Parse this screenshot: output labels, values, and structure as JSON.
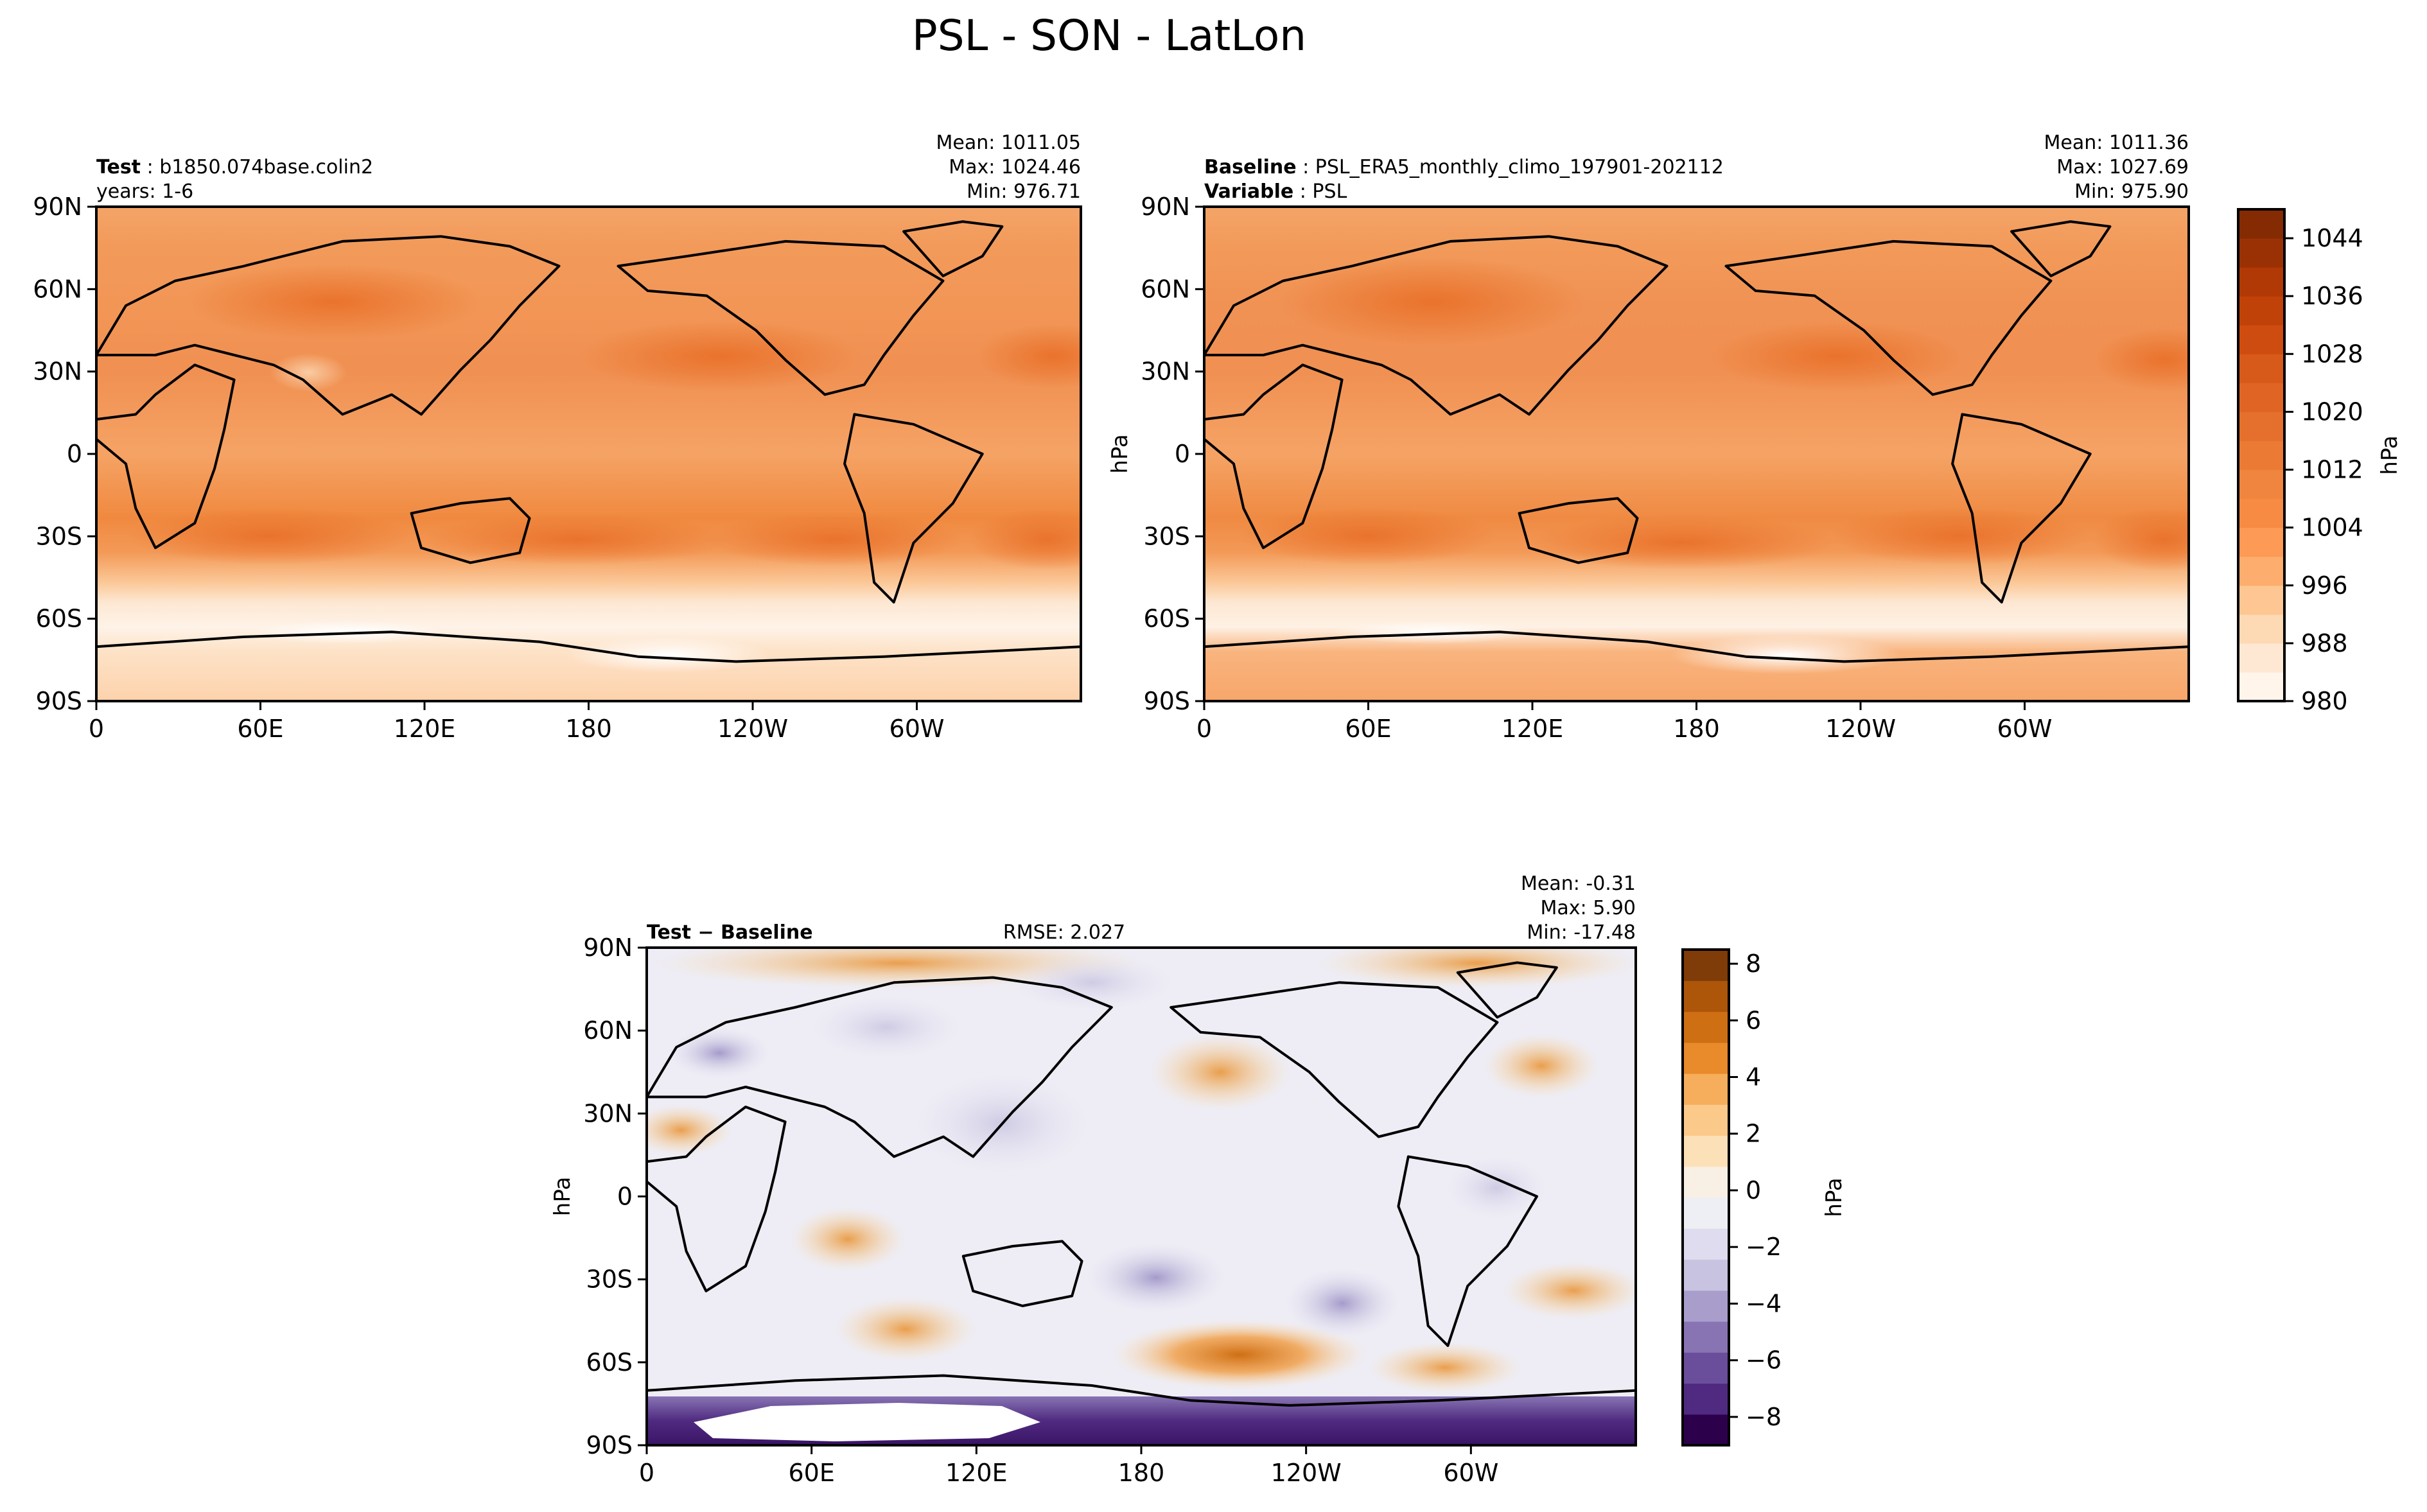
{
  "figure": {
    "title": "PSL - SON - LatLon"
  },
  "chart_data": [
    {
      "type": "heatmap",
      "name": "test",
      "header_left": [
        {
          "key": "Test",
          "value": "b1850.074base.colin2"
        },
        {
          "key": "",
          "value": "years: 1-6"
        }
      ],
      "header_right": [
        "Mean: 1011.05",
        "Max: 1024.46",
        "Min: 976.71"
      ],
      "xticks": [
        "0",
        "60E",
        "120E",
        "180",
        "120W",
        "60W"
      ],
      "yticks": [
        "90N",
        "60N",
        "30N",
        "0",
        "30S",
        "60S",
        "90S"
      ],
      "stats": {
        "mean": 1011.05,
        "max": 1024.46,
        "min": 976.71
      },
      "colormap": "Oranges",
      "units": "hPa"
    },
    {
      "type": "heatmap",
      "name": "baseline",
      "header_left": [
        {
          "key": "Baseline",
          "value": "PSL_ERA5_monthly_climo_197901-202112"
        },
        {
          "key": "Variable",
          "value": "PSL"
        }
      ],
      "header_right": [
        "Mean: 1011.36",
        "Max: 1027.69",
        "Min: 975.90"
      ],
      "xticks": [
        "0",
        "60E",
        "120E",
        "180",
        "120W",
        "60W"
      ],
      "yticks": [
        "90N",
        "60N",
        "30N",
        "0",
        "30S",
        "60S",
        "90S"
      ],
      "stats": {
        "mean": 1011.36,
        "max": 1027.69,
        "min": 975.9
      },
      "colormap": "Oranges",
      "units": "hPa",
      "ylabel": "hPa",
      "colorbar": {
        "label": "hPa",
        "range": [
          980,
          1048
        ],
        "ticks": [
          "1044",
          "1036",
          "1028",
          "1020",
          "1012",
          "1004",
          "996",
          "988",
          "980"
        ],
        "tick_values": [
          1044,
          1036,
          1028,
          1020,
          1012,
          1004,
          996,
          988,
          980
        ],
        "colors": [
          "#fff5eb",
          "#fee8d3",
          "#fdd9b4",
          "#fdc692",
          "#fdad6d",
          "#fd9a55",
          "#f88b44",
          "#f0853f",
          "#eb7a35",
          "#e5702d",
          "#e06525",
          "#d85a1b",
          "#cf4c10",
          "#c14208",
          "#b13905",
          "#9a3104",
          "#842b04"
        ]
      }
    },
    {
      "type": "heatmap",
      "name": "difference",
      "header_left": [
        {
          "key": "Test − Baseline",
          "value": ""
        }
      ],
      "header_center": "RMSE: 2.027",
      "header_right": [
        "Mean: -0.31",
        "Max:  5.90",
        "Min: -17.48"
      ],
      "xticks": [
        "0",
        "60E",
        "120E",
        "180",
        "120W",
        "60W"
      ],
      "yticks": [
        "90N",
        "60N",
        "30N",
        "0",
        "30S",
        "60S",
        "90S"
      ],
      "stats": {
        "mean": -0.31,
        "max": 5.9,
        "min": -17.48,
        "rmse": 2.027
      },
      "colormap": "PuOr_r",
      "units": "hPa",
      "ylabel": "hPa",
      "colorbar": {
        "label": "hPa",
        "range": [
          -9,
          8.5
        ],
        "ticks": [
          "8",
          "6",
          "4",
          "2",
          "0",
          "−2",
          "−4",
          "−6",
          "−8"
        ],
        "tick_values": [
          8,
          6,
          4,
          2,
          0,
          -2,
          -4,
          -6,
          -8
        ],
        "colors": [
          "#2d004b",
          "#4f2a80",
          "#6a4e9c",
          "#8874b3",
          "#a99dcb",
          "#c7c3e0",
          "#dedcee",
          "#eeeef5",
          "#f8f0e4",
          "#fce0b7",
          "#fbc98a",
          "#f6ae5c",
          "#e98a2b",
          "#cf6f14",
          "#ad560a",
          "#7f3b08"
        ]
      }
    }
  ]
}
